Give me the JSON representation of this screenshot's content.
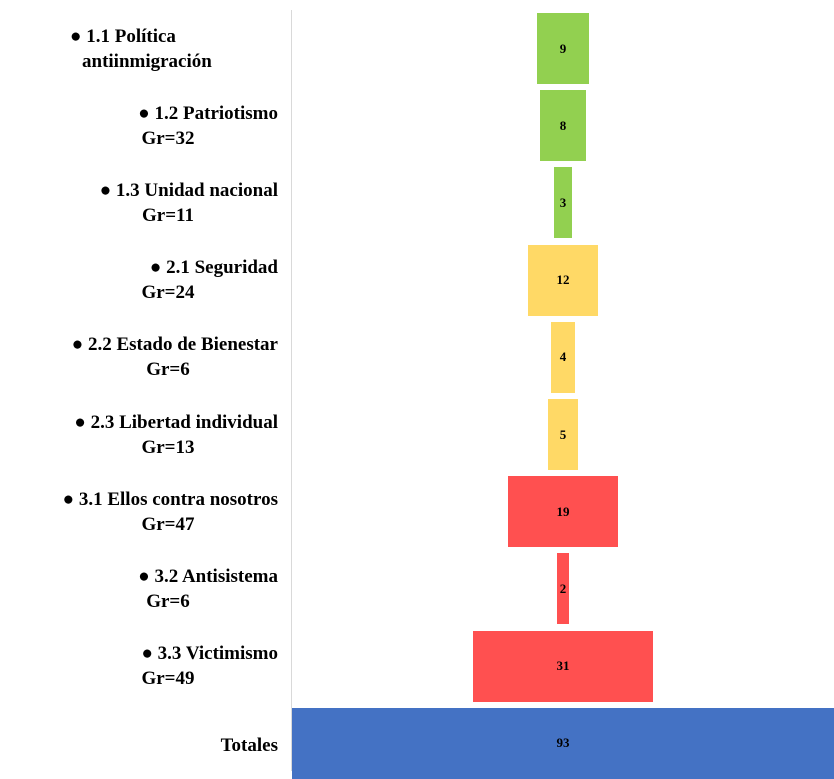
{
  "colors": {
    "green": "#92d050",
    "yellow": "#ffd966",
    "red": "#ff5050",
    "blue": "#4472c4",
    "axis": "#d9d9d9"
  },
  "chart_data": {
    "type": "bar",
    "orientation": "horizontal",
    "style": "funnel",
    "rows": [
      {
        "label1": "● 1.1 Política",
        "label2": "antiinmigración",
        "value": 9,
        "group": "green"
      },
      {
        "label1": "● 1.2 Patriotismo",
        "label2": "Gr=32",
        "value": 8,
        "group": "green"
      },
      {
        "label1": "● 1.3 Unidad nacional",
        "label2": "Gr=11",
        "value": 3,
        "group": "green"
      },
      {
        "label1": "● 2.1 Seguridad",
        "label2": "Gr=24",
        "value": 12,
        "group": "yellow"
      },
      {
        "label1": "● 2.2 Estado de Bienestar",
        "label2": "Gr=6",
        "value": 4,
        "group": "yellow"
      },
      {
        "label1": "● 2.3 Libertad individual",
        "label2": "Gr=13",
        "value": 5,
        "group": "yellow"
      },
      {
        "label1": "● 3.1 Ellos contra nosotros",
        "label2": "Gr=47",
        "value": 19,
        "group": "red"
      },
      {
        "label1": "● 3.2 Antisistema",
        "label2": "Gr=6",
        "value": 2,
        "group": "red"
      },
      {
        "label1": "● 3.3 Victimismo",
        "label2": "Gr=49",
        "value": 31,
        "group": "red"
      },
      {
        "label1": "Totales",
        "label2": "",
        "value": 93,
        "group": "blue"
      }
    ],
    "xlim": [
      0,
      93
    ],
    "grid": false,
    "legend": "none"
  }
}
